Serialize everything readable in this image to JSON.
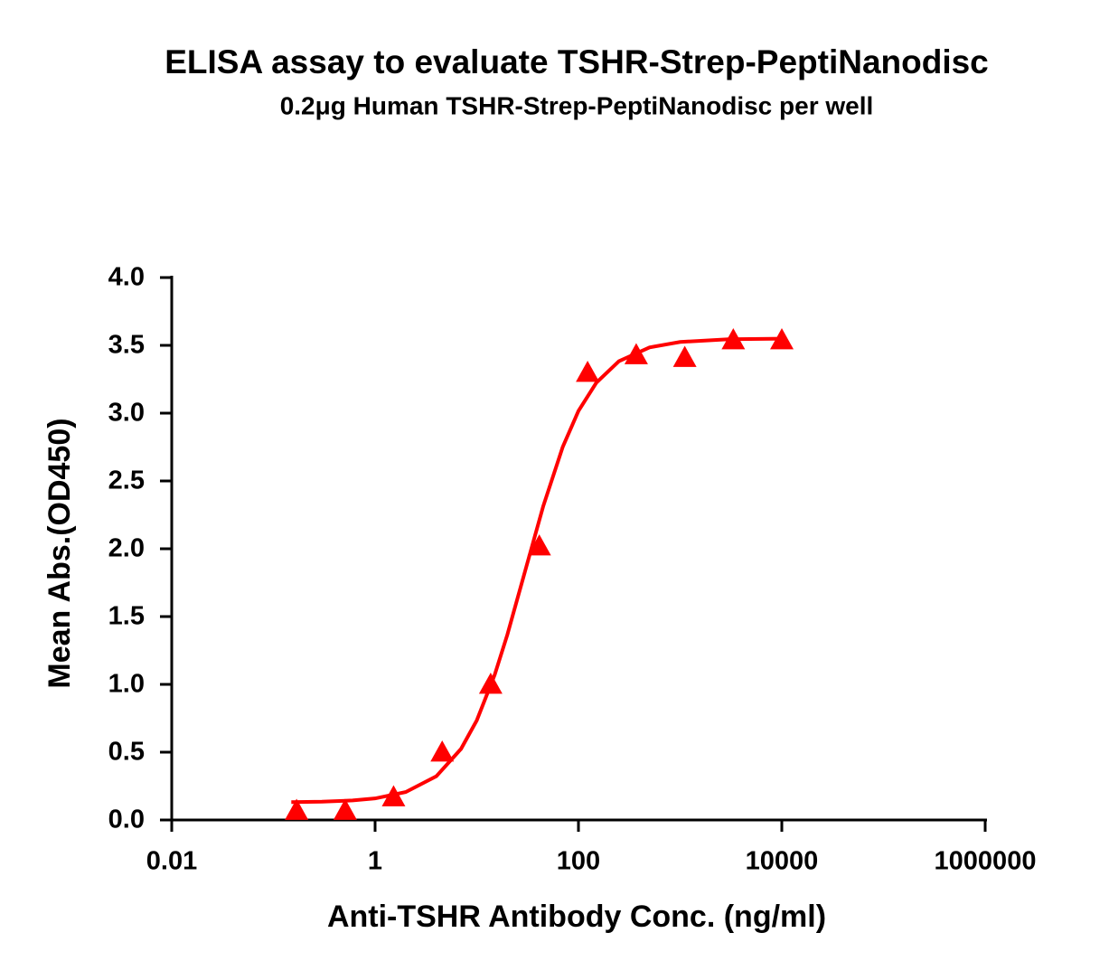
{
  "chart_data": {
    "type": "scatter",
    "title": "ELISA assay to evaluate TSHR-Strep-PeptiNanodisc",
    "subtitle": "0.2μg Human TSHR-Strep-PeptiNanodisc per well",
    "x_label": "Anti-TSHR Antibody Conc. (ng/ml)",
    "y_label": "Mean Abs.(OD450)",
    "x_scale": "log",
    "xlim": [
      0.01,
      1000000
    ],
    "xticks": [
      0.01,
      1,
      100,
      10000,
      1000000
    ],
    "ylim": [
      0,
      4
    ],
    "yticks": [
      {
        "value": 0,
        "label": "0.0"
      },
      0.5,
      {
        "value": 1,
        "label": "1.0"
      },
      1.5,
      {
        "value": 2,
        "label": "2.0"
      },
      2.5,
      {
        "value": 3,
        "label": "3.0"
      },
      3.5,
      {
        "value": 4,
        "label": "4.0"
      }
    ],
    "series": [
      {
        "color": "#ff0000",
        "marker": "triangle",
        "x": [
          0.169,
          0.508,
          1.52,
          4.57,
          13.7,
          41.2,
          123,
          370,
          1111,
          3333,
          10000
        ],
        "values": [
          0.07,
          0.07,
          0.17,
          0.5,
          1.0,
          2.02,
          3.3,
          3.43,
          3.41,
          3.54,
          3.54
        ]
      },
      {
        "color": "#ff0000",
        "marker": "line",
        "x": [
          0.15,
          0.3,
          0.6,
          1,
          2,
          4,
          7,
          10,
          15,
          20,
          30,
          45,
          70,
          100,
          150,
          250,
          500,
          1000,
          3000,
          10000
        ],
        "values": [
          0.132,
          0.135,
          0.144,
          0.159,
          0.206,
          0.322,
          0.524,
          0.734,
          1.07,
          1.367,
          1.84,
          2.313,
          2.75,
          3.016,
          3.225,
          3.383,
          3.485,
          3.525,
          3.545,
          3.549
        ]
      }
    ]
  }
}
